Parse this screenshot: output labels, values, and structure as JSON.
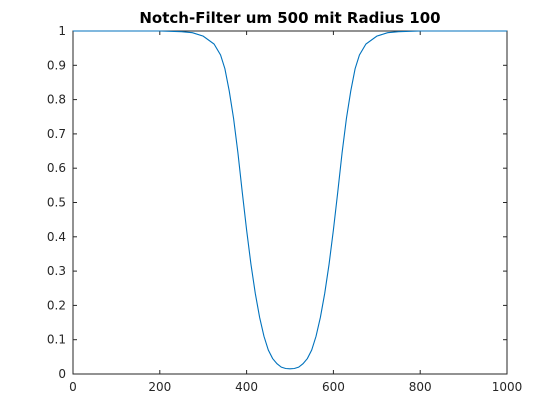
{
  "chart_data": {
    "type": "line",
    "title": "Notch-Filter um 500 mit Radius 100",
    "xlabel": "",
    "ylabel": "",
    "xlim": [
      0,
      1000
    ],
    "ylim": [
      0,
      1
    ],
    "x_ticks": [
      0,
      200,
      400,
      600,
      800,
      1000
    ],
    "x_tick_labels": [
      "0",
      "200",
      "400",
      "600",
      "800",
      "1000"
    ],
    "y_ticks": [
      0,
      0.1,
      0.2,
      0.3,
      0.4,
      0.5,
      0.6,
      0.7,
      0.8,
      0.9,
      1
    ],
    "y_tick_labels": [
      "0",
      "0.1",
      "0.2",
      "0.3",
      "0.4",
      "0.5",
      "0.6",
      "0.7",
      "0.8",
      "0.9",
      "1"
    ],
    "grid": false,
    "box": true,
    "series": [
      {
        "color": "#0072bd",
        "x": [
          0,
          200,
          250,
          275,
          300,
          325,
          340,
          350,
          360,
          370,
          380,
          390,
          400,
          410,
          420,
          430,
          440,
          450,
          460,
          470,
          480,
          490,
          500,
          510,
          520,
          530,
          540,
          550,
          560,
          570,
          580,
          590,
          600,
          610,
          620,
          630,
          640,
          650,
          660,
          675,
          700,
          725,
          750,
          800,
          1000
        ],
        "y": [
          1,
          1,
          0.998,
          0.995,
          0.985,
          0.962,
          0.93,
          0.89,
          0.825,
          0.745,
          0.645,
          0.53,
          0.42,
          0.32,
          0.235,
          0.165,
          0.11,
          0.07,
          0.045,
          0.03,
          0.02,
          0.016,
          0.015,
          0.016,
          0.02,
          0.03,
          0.045,
          0.07,
          0.11,
          0.165,
          0.235,
          0.32,
          0.42,
          0.53,
          0.645,
          0.745,
          0.825,
          0.89,
          0.93,
          0.962,
          0.985,
          0.995,
          0.998,
          1,
          1
        ]
      }
    ]
  }
}
